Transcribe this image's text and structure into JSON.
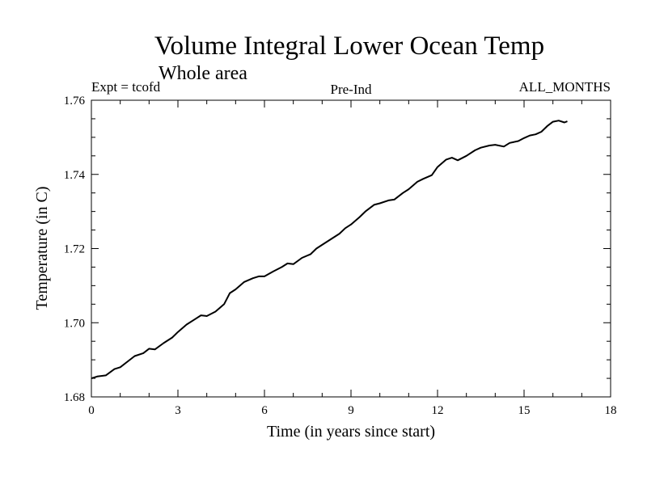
{
  "chart_data": {
    "type": "line",
    "title": "Volume Integral Lower Ocean Temp",
    "subtitle": "Whole area",
    "header_left": "Expt = tcofd",
    "header_center": "Pre-Ind",
    "header_right": "ALL_MONTHS",
    "xlabel": "Time (in years since start)",
    "ylabel": "Temperature (in C)",
    "xlim": [
      0,
      18
    ],
    "ylim": [
      1.68,
      1.76
    ],
    "xticks": [
      0,
      3,
      6,
      9,
      12,
      15,
      18
    ],
    "xtick_labels": [
      "0",
      "3",
      "6",
      "9",
      "12",
      "15",
      "18"
    ],
    "yticks": [
      1.68,
      1.7,
      1.72,
      1.74,
      1.76
    ],
    "ytick_labels": [
      "1.68",
      "1.70",
      "1.72",
      "1.74",
      "1.76"
    ],
    "x_minor_step": 1,
    "y_minor_step": 0.005,
    "grid": false,
    "series": [
      {
        "name": "Temperature",
        "color": "#000000",
        "x": [
          0.0,
          0.2,
          0.5,
          0.8,
          1.0,
          1.3,
          1.5,
          1.8,
          2.0,
          2.2,
          2.5,
          2.8,
          3.0,
          3.3,
          3.6,
          3.8,
          4.0,
          4.3,
          4.6,
          4.8,
          5.0,
          5.3,
          5.6,
          5.8,
          6.0,
          6.3,
          6.6,
          6.8,
          7.0,
          7.3,
          7.6,
          7.8,
          8.0,
          8.3,
          8.6,
          8.8,
          9.0,
          9.3,
          9.5,
          9.8,
          10.0,
          10.3,
          10.5,
          10.8,
          11.0,
          11.3,
          11.5,
          11.8,
          12.0,
          12.3,
          12.5,
          12.7,
          13.0,
          13.3,
          13.5,
          13.8,
          14.0,
          14.3,
          14.5,
          14.8,
          15.0,
          15.2,
          15.4,
          15.6,
          15.8,
          16.0,
          16.2,
          16.4,
          16.5
        ],
        "y": [
          1.685,
          1.6855,
          1.6858,
          1.6875,
          1.688,
          1.6898,
          1.691,
          1.6918,
          1.693,
          1.6928,
          1.6945,
          1.696,
          1.6975,
          1.6995,
          1.701,
          1.702,
          1.7018,
          1.703,
          1.705,
          1.708,
          1.709,
          1.711,
          1.712,
          1.7125,
          1.7125,
          1.7138,
          1.715,
          1.716,
          1.7158,
          1.7175,
          1.7185,
          1.72,
          1.721,
          1.7225,
          1.724,
          1.7255,
          1.7265,
          1.7285,
          1.73,
          1.7318,
          1.7322,
          1.733,
          1.7332,
          1.735,
          1.736,
          1.738,
          1.7388,
          1.7398,
          1.742,
          1.744,
          1.7445,
          1.7438,
          1.745,
          1.7465,
          1.7472,
          1.7478,
          1.748,
          1.7475,
          1.7485,
          1.749,
          1.7498,
          1.7505,
          1.7508,
          1.7515,
          1.753,
          1.7542,
          1.7545,
          1.754,
          1.7543
        ]
      }
    ]
  }
}
